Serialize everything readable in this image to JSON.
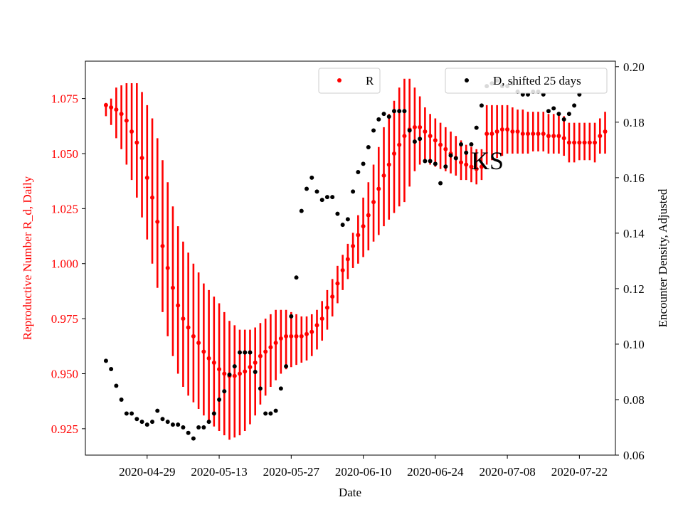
{
  "chart_data": {
    "type": "scatter",
    "xlabel": "Date",
    "ylabel_left": "Reproductive Number R_d, Daily",
    "ylabel_right": "Encounter Density, Adjusted",
    "annotation": "KS",
    "x_ticks": [
      "2020-04-29",
      "2020-05-13",
      "2020-05-27",
      "2020-06-10",
      "2020-06-24",
      "2020-07-08",
      "2020-07-22"
    ],
    "x_range": [
      "2020-04-17",
      "2020-07-29"
    ],
    "y_left_range": [
      0.913,
      1.092
    ],
    "y_left_ticks": [
      "0.925",
      "0.950",
      "0.975",
      "1.000",
      "1.025",
      "1.050",
      "1.075"
    ],
    "y_right_range": [
      0.06,
      0.202
    ],
    "y_right_ticks": [
      "0.06",
      "0.08",
      "0.10",
      "0.12",
      "0.14",
      "0.16",
      "0.18",
      "0.20"
    ],
    "colors": {
      "R": "#ff0000",
      "D": "#000000",
      "axis_left": "#ff0000"
    },
    "legend": {
      "R": "R",
      "D": "D, shifted 25 days"
    },
    "R_series": {
      "name": "R",
      "start_date": "2020-04-21",
      "values": [
        1.072,
        1.071,
        1.07,
        1.068,
        1.065,
        1.06,
        1.055,
        1.048,
        1.039,
        1.03,
        1.019,
        1.008,
        0.998,
        0.989,
        0.981,
        0.975,
        0.971,
        0.967,
        0.964,
        0.96,
        0.957,
        0.955,
        0.952,
        0.95,
        0.949,
        0.949,
        0.95,
        0.951,
        0.953,
        0.955,
        0.958,
        0.96,
        0.962,
        0.964,
        0.966,
        0.967,
        0.967,
        0.967,
        0.967,
        0.968,
        0.969,
        0.972,
        0.975,
        0.98,
        0.985,
        0.991,
        0.997,
        1.002,
        1.008,
        1.013,
        1.017,
        1.022,
        1.028,
        1.034,
        1.04,
        1.045,
        1.05,
        1.054,
        1.058,
        1.061,
        1.062,
        1.062,
        1.06,
        1.058,
        1.056,
        1.054,
        1.052,
        1.05,
        1.048,
        1.046,
        1.045,
        1.044,
        1.043,
        1.044,
        1.059,
        1.059,
        1.06,
        1.061,
        1.061,
        1.06,
        1.06,
        1.059,
        1.059,
        1.059,
        1.059,
        1.059,
        1.058,
        1.058,
        1.058,
        1.057,
        1.055,
        1.055,
        1.055,
        1.055,
        1.055,
        1.055,
        1.058,
        1.06
      ],
      "low": [
        1.067,
        1.063,
        1.057,
        1.052,
        1.045,
        1.038,
        1.03,
        1.021,
        1.011,
        1.0,
        0.989,
        0.978,
        0.967,
        0.958,
        0.95,
        0.944,
        0.94,
        0.937,
        0.934,
        0.931,
        0.928,
        0.926,
        0.924,
        0.922,
        0.92,
        0.921,
        0.922,
        0.924,
        0.927,
        0.931,
        0.936,
        0.94,
        0.944,
        0.947,
        0.95,
        0.952,
        0.953,
        0.954,
        0.955,
        0.956,
        0.958,
        0.961,
        0.965,
        0.97,
        0.976,
        0.982,
        0.988,
        0.993,
        0.998,
        1.0,
        1.003,
        1.006,
        1.01,
        1.013,
        1.017,
        1.02,
        1.023,
        1.026,
        1.028,
        1.035,
        1.042,
        1.045,
        1.046,
        1.045,
        1.044,
        1.043,
        1.042,
        1.041,
        1.04,
        1.038,
        1.038,
        1.037,
        1.036,
        1.038,
        1.045,
        1.047,
        1.048,
        1.049,
        1.05,
        1.05,
        1.05,
        1.05,
        1.05,
        1.051,
        1.051,
        1.051,
        1.05,
        1.05,
        1.05,
        1.049,
        1.046,
        1.046,
        1.047,
        1.047,
        1.047,
        1.046,
        1.05,
        1.05
      ],
      "high": [
        1.073,
        1.075,
        1.08,
        1.081,
        1.082,
        1.082,
        1.082,
        1.078,
        1.072,
        1.066,
        1.057,
        1.047,
        1.037,
        1.026,
        1.017,
        1.01,
        1.005,
        1.0,
        0.996,
        0.991,
        0.988,
        0.985,
        0.982,
        0.978,
        0.974,
        0.972,
        0.97,
        0.97,
        0.97,
        0.971,
        0.973,
        0.975,
        0.977,
        0.979,
        0.979,
        0.979,
        0.978,
        0.977,
        0.976,
        0.976,
        0.977,
        0.979,
        0.983,
        0.988,
        0.993,
        0.999,
        1.004,
        1.009,
        1.014,
        1.022,
        1.03,
        1.037,
        1.045,
        1.053,
        1.062,
        1.068,
        1.074,
        1.08,
        1.084,
        1.084,
        1.08,
        1.076,
        1.071,
        1.068,
        1.066,
        1.064,
        1.062,
        1.06,
        1.058,
        1.056,
        1.054,
        1.053,
        1.052,
        1.052,
        1.072,
        1.072,
        1.072,
        1.072,
        1.072,
        1.071,
        1.07,
        1.07,
        1.069,
        1.069,
        1.069,
        1.069,
        1.068,
        1.068,
        1.068,
        1.067,
        1.064,
        1.064,
        1.064,
        1.064,
        1.064,
        1.064,
        1.066,
        1.069
      ]
    },
    "D_series": {
      "name": "D, shifted 25 days",
      "start_date": "2020-04-21",
      "values": [
        0.094,
        0.091,
        0.085,
        0.08,
        0.075,
        0.075,
        0.073,
        0.072,
        0.071,
        0.072,
        0.076,
        0.073,
        0.072,
        0.071,
        0.071,
        0.07,
        0.068,
        0.066,
        0.07,
        0.07,
        0.072,
        0.075,
        0.08,
        0.083,
        0.089,
        0.092,
        0.097,
        0.097,
        0.097,
        0.09,
        0.084,
        0.075,
        0.075,
        0.076,
        0.084,
        0.092,
        0.11,
        0.124,
        0.148,
        0.156,
        0.16,
        0.155,
        0.152,
        0.153,
        0.153,
        0.147,
        0.143,
        0.145,
        0.155,
        0.162,
        0.165,
        0.171,
        0.177,
        0.181,
        0.183,
        0.182,
        0.184,
        0.184,
        0.184,
        0.177,
        0.173,
        0.174,
        0.166,
        0.166,
        0.165,
        0.158,
        0.164,
        0.168,
        0.167,
        0.172,
        0.169,
        0.172,
        0.178,
        0.186,
        0.193,
        0.194,
        0.195,
        0.193,
        0.193,
        0.194,
        0.191,
        0.19,
        0.19,
        0.191,
        0.191,
        0.19,
        0.184,
        0.185,
        0.183,
        0.181,
        0.183,
        0.186,
        0.19
      ]
    }
  }
}
